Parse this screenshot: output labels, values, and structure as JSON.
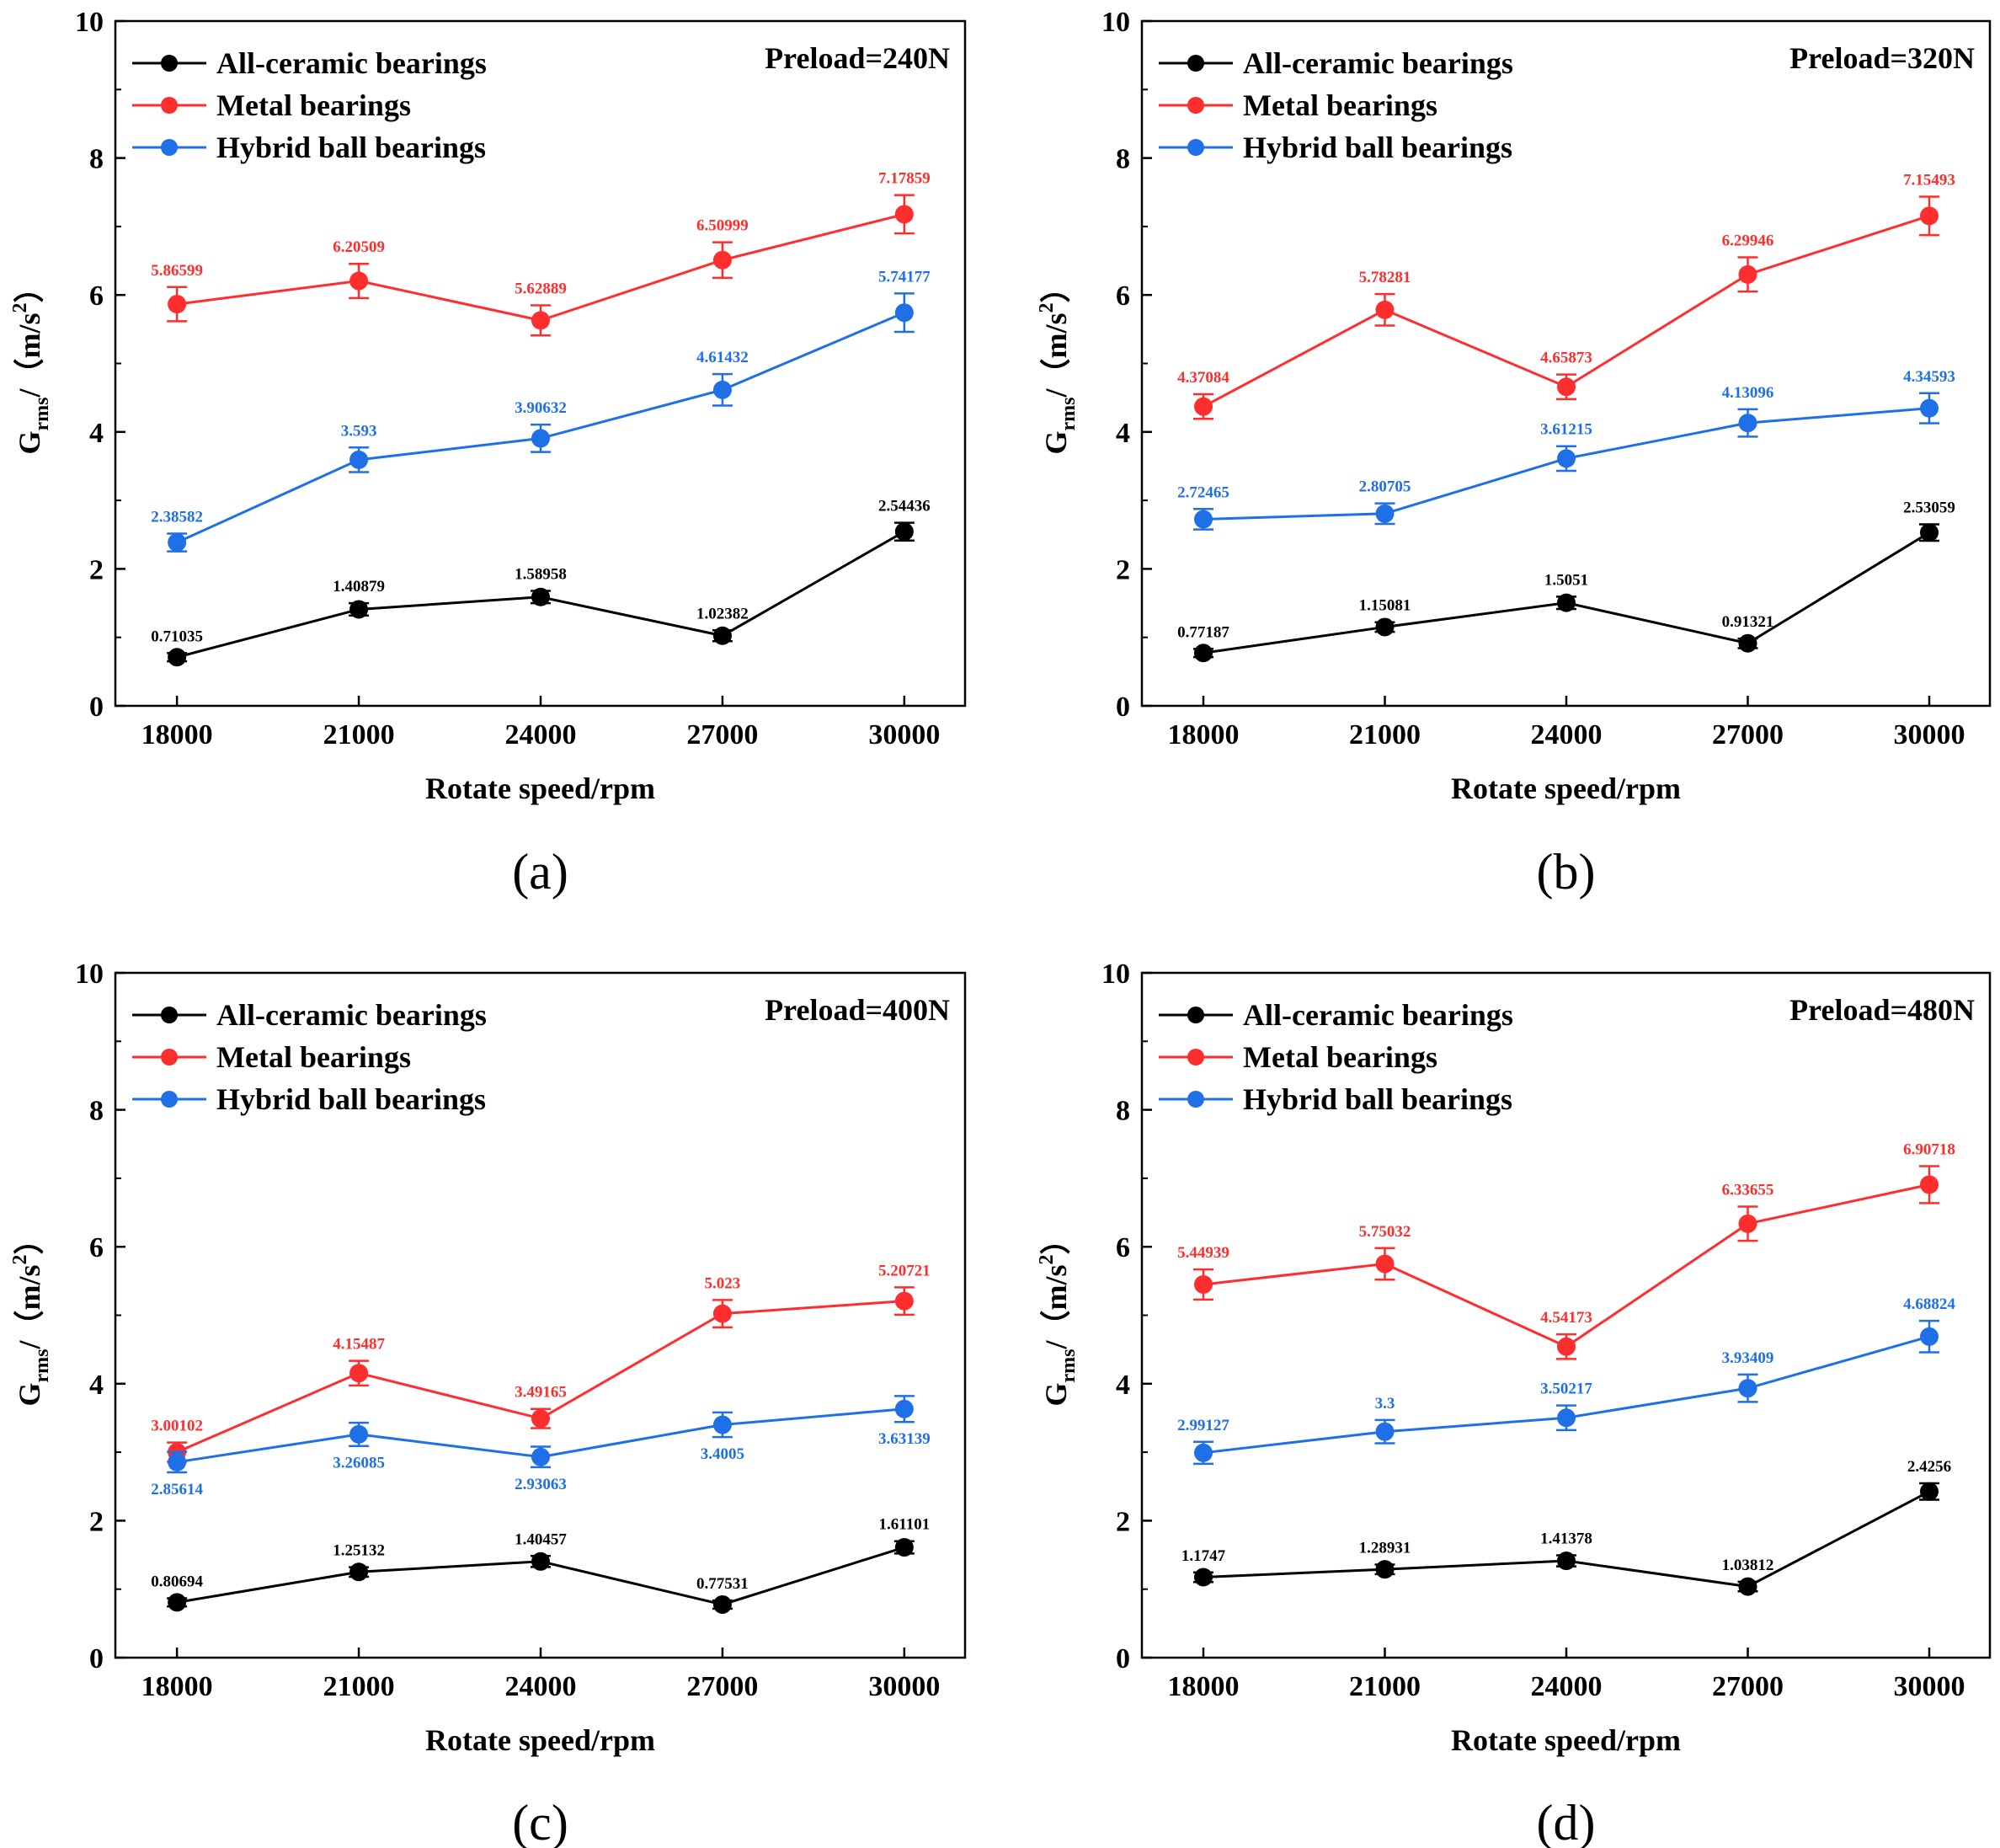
{
  "legend": [
    {
      "name": "All-ceramic bearings",
      "color": "#000000"
    },
    {
      "name": "Metal bearings",
      "color": "#ff2e2e"
    },
    {
      "name": "Hybrid ball bearings",
      "color": "#1f6fe6"
    }
  ],
  "chart_data": [
    {
      "type": "line",
      "panel_caption": "(a)",
      "annotation": "Preload=240N",
      "xlabel": "Rotate speed/rpm",
      "ylabel": "Grms/（m/s2）",
      "ylabel_main": "G",
      "ylabel_sub": "rms",
      "ylabel_unit": "/（m/s",
      "ylabel_sup": "2",
      "ylabel_close": "）",
      "categories": [
        "18000",
        "21000",
        "24000",
        "27000",
        "30000"
      ],
      "ylim": [
        0,
        10
      ],
      "yticks": [
        "0",
        "2",
        "4",
        "6",
        "8",
        "10"
      ],
      "grid": false,
      "legend_position": "top-left",
      "series": [
        {
          "name": "All-ceramic bearings",
          "values": [
            0.71035,
            1.40879,
            1.58958,
            1.02382,
            2.54436
          ],
          "labels": [
            "0.71035",
            "1.40879",
            "1.58958",
            "1.02382",
            "2.54436"
          ],
          "errors": [
            0.06,
            0.09,
            0.09,
            0.08,
            0.13
          ],
          "label_pos": [
            "above",
            "above",
            "above",
            "above",
            "above"
          ]
        },
        {
          "name": "Metal bearings",
          "values": [
            5.86599,
            6.20509,
            5.62889,
            6.50999,
            7.17859
          ],
          "labels": [
            "5.86599",
            "6.20509",
            "5.62889",
            "6.50999",
            "7.17859"
          ],
          "errors": [
            0.25,
            0.25,
            0.22,
            0.26,
            0.28
          ],
          "label_pos": [
            "above",
            "above",
            "above",
            "above",
            "above"
          ]
        },
        {
          "name": "Hybrid ball bearings",
          "values": [
            2.38582,
            3.593,
            3.90632,
            4.61432,
            5.74177
          ],
          "labels": [
            "2.38582",
            "3.593",
            "3.90632",
            "4.61432",
            "5.74177"
          ],
          "errors": [
            0.13,
            0.18,
            0.2,
            0.23,
            0.28
          ],
          "label_pos": [
            "above",
            "above",
            "above",
            "above",
            "above"
          ]
        }
      ]
    },
    {
      "type": "line",
      "panel_caption": "(b)",
      "annotation": "Preload=320N",
      "xlabel": "Rotate speed/rpm",
      "ylabel": "Grms/（m/s2）",
      "ylabel_main": "G",
      "ylabel_sub": "rms",
      "ylabel_unit": "/（m/s",
      "ylabel_sup": "2",
      "ylabel_close": "）",
      "categories": [
        "18000",
        "21000",
        "24000",
        "27000",
        "30000"
      ],
      "ylim": [
        0,
        10
      ],
      "yticks": [
        "0",
        "2",
        "4",
        "6",
        "8",
        "10"
      ],
      "grid": false,
      "legend_position": "top-left",
      "series": [
        {
          "name": "All-ceramic bearings",
          "values": [
            0.77187,
            1.15081,
            1.5051,
            0.91321,
            2.53059
          ],
          "labels": [
            "0.77187",
            "1.15081",
            "1.5051",
            "0.91321",
            "2.53059"
          ],
          "errors": [
            0.06,
            0.07,
            0.09,
            0.07,
            0.12
          ],
          "label_pos": [
            "above",
            "above",
            "above",
            "above",
            "above"
          ]
        },
        {
          "name": "Metal bearings",
          "values": [
            4.37084,
            5.78281,
            4.65873,
            6.29946,
            7.15493
          ],
          "labels": [
            "4.37084",
            "5.78281",
            "4.65873",
            "6.29946",
            "7.15493"
          ],
          "errors": [
            0.18,
            0.23,
            0.18,
            0.25,
            0.28
          ],
          "label_pos": [
            "above",
            "above",
            "above",
            "above",
            "above"
          ]
        },
        {
          "name": "Hybrid ball bearings",
          "values": [
            2.72465,
            2.80705,
            3.61215,
            4.13096,
            4.34593
          ],
          "labels": [
            "2.72465",
            "2.80705",
            "3.61215",
            "4.13096",
            "4.34593"
          ],
          "errors": [
            0.15,
            0.15,
            0.18,
            0.2,
            0.22
          ],
          "label_pos": [
            "above",
            "above",
            "above",
            "above",
            "above"
          ]
        }
      ]
    },
    {
      "type": "line",
      "panel_caption": "(c)",
      "annotation": "Preload=400N",
      "xlabel": "Rotate speed/rpm",
      "ylabel": "Grms/（m/s2）",
      "ylabel_main": "G",
      "ylabel_sub": "rms",
      "ylabel_unit": "/（m/s",
      "ylabel_sup": "2",
      "ylabel_close": "）",
      "categories": [
        "18000",
        "21000",
        "24000",
        "27000",
        "30000"
      ],
      "ylim": [
        0,
        10
      ],
      "yticks": [
        "0",
        "2",
        "4",
        "6",
        "8",
        "10"
      ],
      "grid": false,
      "legend_position": "top-left",
      "series": [
        {
          "name": "All-ceramic bearings",
          "values": [
            0.80694,
            1.25132,
            1.40457,
            0.77531,
            1.61101
          ],
          "labels": [
            "0.80694",
            "1.25132",
            "1.40457",
            "0.77531",
            "1.61101"
          ],
          "errors": [
            0.06,
            0.07,
            0.08,
            0.06,
            0.09
          ],
          "label_pos": [
            "above",
            "above",
            "above",
            "above",
            "above"
          ]
        },
        {
          "name": "Metal bearings",
          "values": [
            3.00102,
            4.15487,
            3.49165,
            5.023,
            5.20721
          ],
          "labels": [
            "3.00102",
            "4.15487",
            "3.49165",
            "5.023",
            "5.20721"
          ],
          "errors": [
            0.14,
            0.18,
            0.14,
            0.2,
            0.2
          ],
          "label_pos": [
            "above",
            "above",
            "above",
            "above",
            "above"
          ]
        },
        {
          "name": "Hybrid ball bearings",
          "values": [
            2.85614,
            3.26085,
            2.93063,
            3.4005,
            3.63139
          ],
          "labels": [
            "2.85614",
            "3.26085",
            "2.93063",
            "3.4005",
            "3.63139"
          ],
          "errors": [
            0.15,
            0.17,
            0.15,
            0.18,
            0.19
          ],
          "label_pos": [
            "below",
            "below",
            "below",
            "below",
            "below"
          ]
        }
      ]
    },
    {
      "type": "line",
      "panel_caption": "(d)",
      "annotation": "Preload=480N",
      "xlabel": "Rotate speed/rpm",
      "ylabel": "Grms/（m/s2）",
      "ylabel_main": "G",
      "ylabel_sub": "rms",
      "ylabel_unit": "/（m/s",
      "ylabel_sup": "2",
      "ylabel_close": "）",
      "categories": [
        "18000",
        "21000",
        "24000",
        "27000",
        "30000"
      ],
      "ylim": [
        0,
        10
      ],
      "yticks": [
        "0",
        "2",
        "4",
        "6",
        "8",
        "10"
      ],
      "grid": false,
      "legend_position": "top-left",
      "series": [
        {
          "name": "All-ceramic bearings",
          "values": [
            1.1747,
            1.28931,
            1.41378,
            1.03812,
            2.4256
          ],
          "labels": [
            "1.1747",
            "1.28931",
            "1.41378",
            "1.03812",
            "2.4256"
          ],
          "errors": [
            0.07,
            0.07,
            0.08,
            0.07,
            0.12
          ],
          "label_pos": [
            "above",
            "above",
            "above",
            "above",
            "above"
          ]
        },
        {
          "name": "Metal bearings",
          "values": [
            5.44939,
            5.75032,
            4.54173,
            6.33655,
            6.90718
          ],
          "labels": [
            "5.44939",
            "5.75032",
            "4.54173",
            "6.33655",
            "6.90718"
          ],
          "errors": [
            0.22,
            0.23,
            0.18,
            0.25,
            0.27
          ],
          "label_pos": [
            "above",
            "above",
            "above",
            "above",
            "above"
          ]
        },
        {
          "name": "Hybrid ball bearings",
          "values": [
            2.99127,
            3.3,
            3.50217,
            3.93409,
            4.68824
          ],
          "labels": [
            "2.99127",
            "3.3",
            "3.50217",
            "3.93409",
            "4.68824"
          ],
          "errors": [
            0.16,
            0.17,
            0.18,
            0.2,
            0.23
          ],
          "label_pos": [
            "above",
            "above",
            "above",
            "above",
            "above"
          ]
        }
      ]
    }
  ]
}
